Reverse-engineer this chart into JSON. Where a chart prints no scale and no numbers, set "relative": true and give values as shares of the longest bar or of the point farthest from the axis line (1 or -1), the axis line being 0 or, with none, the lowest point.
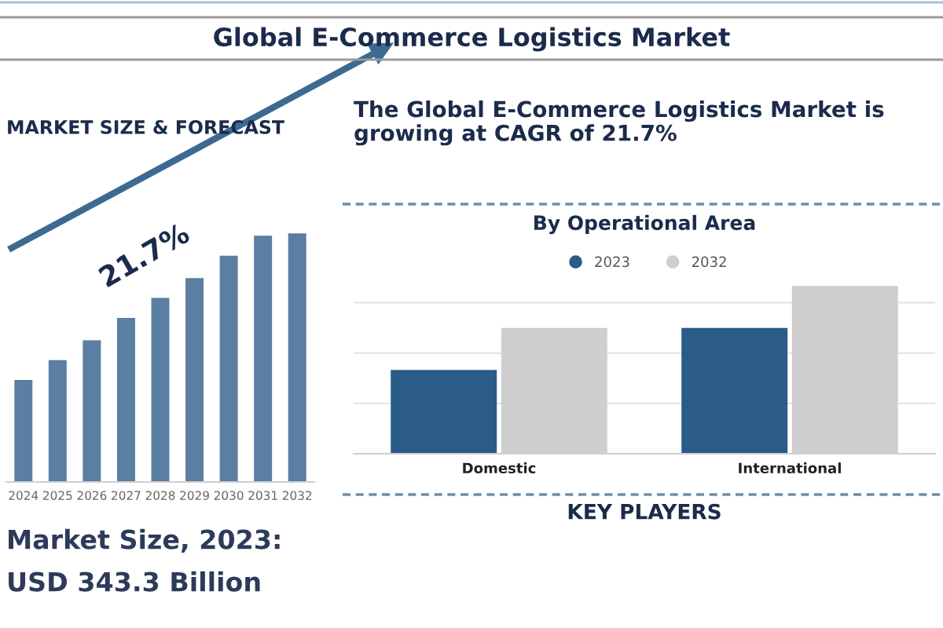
{
  "chart_data": [
    {
      "type": "other",
      "title": "Global E-Commerce Logistics Market"
    },
    {
      "type": "bar",
      "title": "MARKET SIZE & FORECAST",
      "categories": [
        "2024",
        "2025",
        "2026",
        "2027",
        "2028",
        "2029",
        "2030",
        "2031",
        "2032"
      ],
      "values": [
        0.41,
        0.49,
        0.57,
        0.66,
        0.74,
        0.82,
        0.91,
        0.99,
        1
      ],
      "color": "#5b7ea3",
      "relative": true,
      "annotations": [
        "21.7%",
        "Market Size, 2023:",
        "USD 343.3 Billion"
      ]
    },
    {
      "type": "other",
      "title": "The Global E-Commerce Logistics Market is growing at CAGR of 21.7%"
    },
    {
      "type": "bar",
      "title": "By Operational Area",
      "categories": [
        "Domestic",
        "International"
      ],
      "series": [
        {
          "name": "2023",
          "color": "#2b5b88",
          "values": [
            0.5,
            0.75
          ]
        },
        {
          "name": "2032",
          "color": "#cfcfcf",
          "values": [
            0.75,
            1
          ]
        }
      ],
      "relative": true,
      "grid": "y",
      "legend": "top"
    },
    {
      "type": "other",
      "title": "KEY PLAYERS"
    }
  ]
}
